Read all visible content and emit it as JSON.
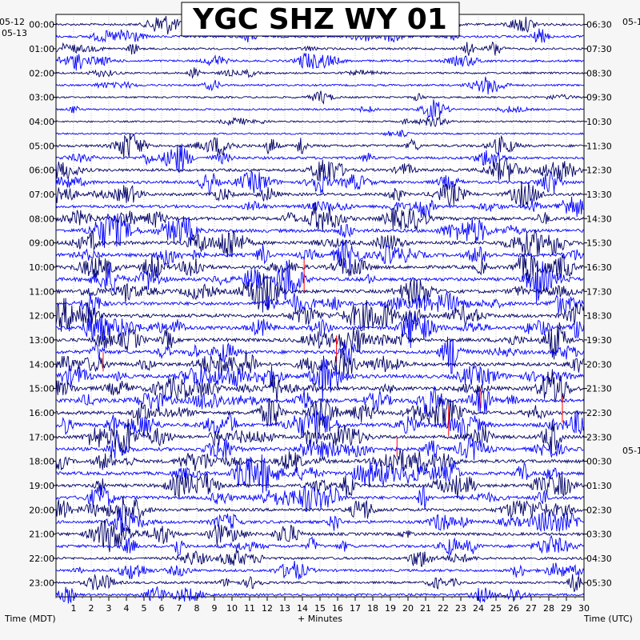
{
  "chart_data": {
    "type": "line",
    "title": "YGC SHZ WY 01",
    "left_axis_label": "Time (MDT)",
    "right_axis_label": "Time (UTC)",
    "x_axis_label": "+ Minutes",
    "left_date_labels": [
      "05-12",
      "05-13"
    ],
    "right_date_labels": [
      "05-1",
      "05-1"
    ],
    "x_ticks": [
      1,
      2,
      3,
      4,
      5,
      6,
      7,
      8,
      9,
      10,
      11,
      12,
      13,
      14,
      15,
      16,
      17,
      18,
      19,
      20,
      21,
      22,
      23,
      24,
      25,
      26,
      27,
      28,
      29,
      30
    ],
    "xlim": [
      0,
      30
    ],
    "left_hour_labels": [
      "00:00",
      "01:00",
      "02:00",
      "03:00",
      "04:00",
      "05:00",
      "06:00",
      "07:00",
      "08:00",
      "09:00",
      "10:00",
      "11:00",
      "12:00",
      "13:00",
      "14:00",
      "15:00",
      "16:00",
      "17:00",
      "18:00",
      "19:00",
      "20:00",
      "21:00",
      "22:00",
      "23:00"
    ],
    "right_hour_labels": [
      "06:30",
      "07:30",
      "08:30",
      "09:30",
      "10:30",
      "11:30",
      "12:30",
      "13:30",
      "14:30",
      "15:30",
      "16:30",
      "17:30",
      "18:30",
      "19:30",
      "20:30",
      "21:30",
      "22:30",
      "23:30",
      "00:30",
      "01:30",
      "02:30",
      "03:30",
      "04:30",
      "05:30"
    ],
    "traces_per_hour": 2,
    "trace_colors": [
      "#000066",
      "#0000ff"
    ],
    "clip_color": "#ff0000",
    "activity_by_hour": [
      0.9,
      0.8,
      0.6,
      0.5,
      0.3,
      1.3,
      1.5,
      1.6,
      2.0,
      2.1,
      2.0,
      2.1,
      2.2,
      2.2,
      2.2,
      2.2,
      2.1,
      2.1,
      2.0,
      1.9,
      1.7,
      1.6,
      1.2,
      1.0
    ]
  }
}
